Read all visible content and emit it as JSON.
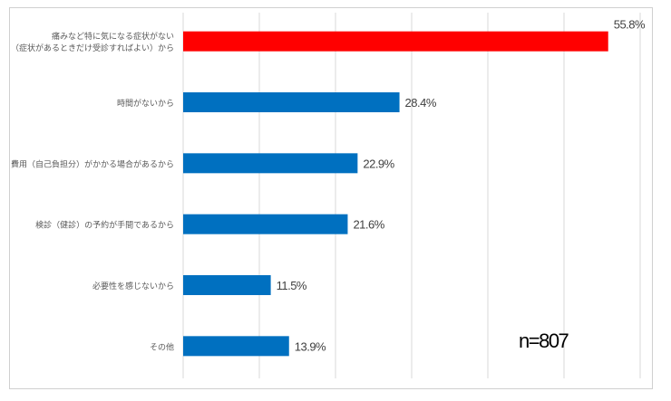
{
  "chart_data": {
    "type": "bar",
    "orientation": "horizontal",
    "categories": [
      [
        "痛みなど特に気になる症状がない",
        "（症状があるときだけ受診すればよい）から"
      ],
      [
        "時間がないから"
      ],
      [
        "費用（自己負担分）がかかる場合があるから"
      ],
      [
        "検診（健診）の予約が手間であるから"
      ],
      [
        "必要性を感じないから"
      ],
      [
        "その他"
      ]
    ],
    "values": [
      55.8,
      28.4,
      22.9,
      21.6,
      11.5,
      13.9
    ],
    "data_labels": [
      "55.8%",
      "28.4%",
      "22.9%",
      "21.6%",
      "11.5%",
      "13.9%"
    ],
    "colors": [
      "#ff0000",
      "#0070c0",
      "#0070c0",
      "#0070c0",
      "#0070c0",
      "#0070c0"
    ],
    "xlim": [
      0,
      60
    ],
    "grid": true,
    "annotation": "n=807"
  }
}
